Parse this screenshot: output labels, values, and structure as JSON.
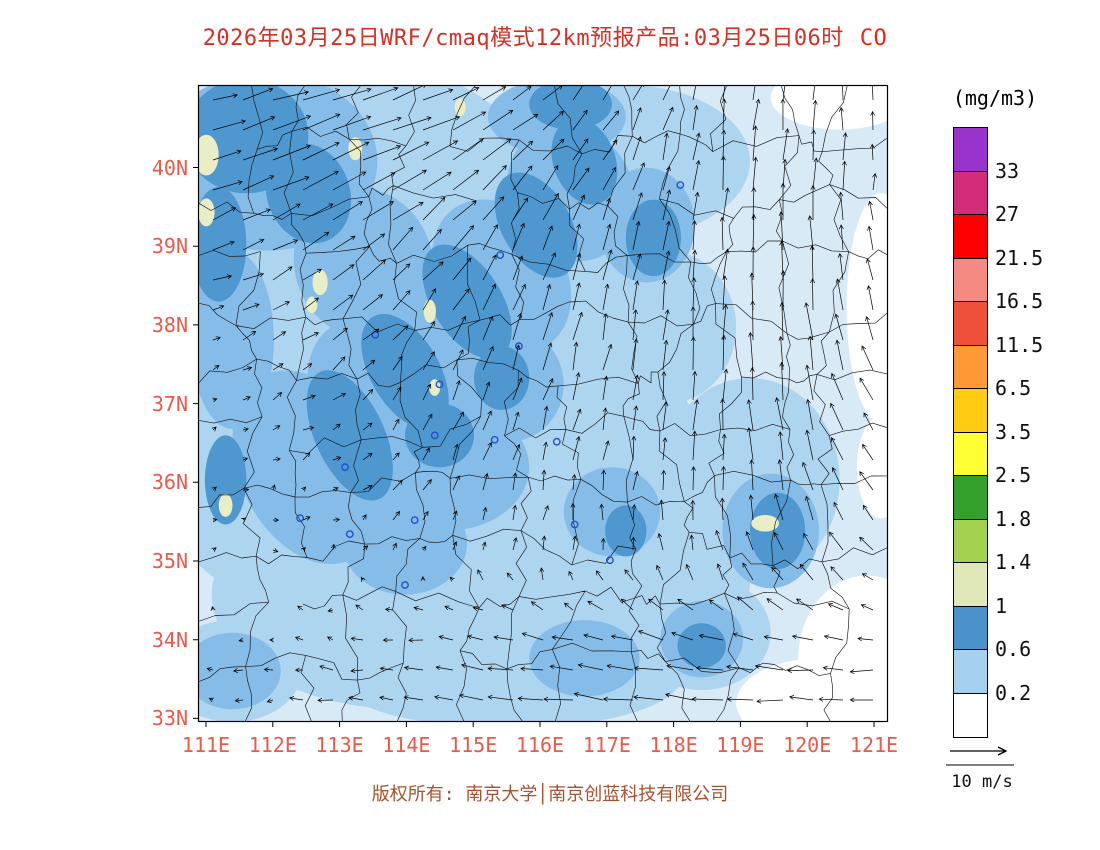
{
  "title": {
    "main": "2026年03月25日WRF/cmaq模式12km预报产品:03月25日06时",
    "species": "CO"
  },
  "axes": {
    "lat_labels": [
      "40N",
      "39N",
      "38N",
      "37N",
      "36N",
      "35N",
      "34N",
      "33N"
    ],
    "lon_labels": [
      "111E",
      "112E",
      "113E",
      "114E",
      "115E",
      "116E",
      "117E",
      "118E",
      "119E",
      "120E",
      "121E"
    ],
    "label_color": "#ee5848"
  },
  "colorbar": {
    "units": "(mg/m3)",
    "labels": [
      "33",
      "27",
      "21.5",
      "16.5",
      "11.5",
      "6.5",
      "3.5",
      "2.5",
      "1.8",
      "1.4",
      "1",
      "0.6",
      "0.2"
    ],
    "colors": [
      "#9933cc",
      "#d12d7a",
      "#ff0000",
      "#f58a80",
      "#ef5138",
      "#ff9933",
      "#ffcc11",
      "#ffff33",
      "#33a02c",
      "#a2d24e",
      "#e0e8b8",
      "#4a92cc",
      "#a5d1ee",
      "#ffffff"
    ]
  },
  "wind_legend": {
    "label": "10 m/s"
  },
  "footer": {
    "text": "版权所有: 南京大学│南京创蓝科技有限公司"
  },
  "chart_data": {
    "type": "heatmap",
    "title": "2026年03月25日WRF/cmaq模式12km预报产品:03月25日06时 CO",
    "variable": "CO",
    "units": "mg/m3",
    "lon_ticks": [
      "111E",
      "112E",
      "113E",
      "114E",
      "115E",
      "116E",
      "117E",
      "118E",
      "119E",
      "120E",
      "121E"
    ],
    "lat_ticks": [
      "40N",
      "39N",
      "38N",
      "37N",
      "36N",
      "35N",
      "34N",
      "33N"
    ],
    "lon_range": [
      111,
      121.3
    ],
    "lat_range": [
      33,
      41.1
    ],
    "contour_levels_mg_m3": [
      0.2,
      0.6,
      1,
      1.4,
      1.8,
      2.5,
      3.5,
      6.5,
      11.5,
      16.5,
      21.5,
      27,
      33
    ],
    "colors_low_to_high": [
      "#ffffff",
      "#a5d1ee",
      "#4a92cc",
      "#e0e8b8",
      "#a2d24e",
      "#33a02c",
      "#ffff33",
      "#ffcc11",
      "#ff9933",
      "#ef5138",
      "#f58a80",
      "#ff0000",
      "#d12d7a",
      "#9933cc"
    ],
    "wind_reference": {
      "speed": 10,
      "units": "m/s"
    },
    "map_render": {
      "palette": {
        "pale": "#d9eaf7",
        "light": "#aed5f0",
        "medium": "#85bde8",
        "dark": "#4f97cf",
        "white": "#ffffff",
        "khaki": "#e9eec6"
      },
      "blobs": [
        {
          "color": "light",
          "shapes": [
            [
              0.22,
              0.22,
              0.3,
              0.26,
              0
            ],
            [
              0.18,
              0.55,
              0.26,
              0.28,
              0
            ],
            [
              0.42,
              0.42,
              0.3,
              0.28,
              0
            ],
            [
              0.3,
              0.8,
              0.28,
              0.18,
              0
            ],
            [
              0.58,
              0.78,
              0.22,
              0.16,
              0
            ],
            [
              0.62,
              0.12,
              0.18,
              0.12,
              0
            ],
            [
              0.52,
              0.6,
              0.22,
              0.2,
              0
            ],
            [
              0.8,
              0.62,
              0.13,
              0.16,
              0
            ],
            [
              0.73,
              0.86,
              0.1,
              0.09,
              0
            ],
            [
              0.68,
              0.38,
              0.1,
              0.12,
              0
            ],
            [
              0.45,
              0.93,
              0.25,
              0.08,
              0
            ],
            [
              0.05,
              0.92,
              0.1,
              0.08,
              0
            ]
          ]
        },
        {
          "color": "medium",
          "shapes": [
            [
              0.1,
              0.12,
              0.16,
              0.14,
              0
            ],
            [
              0.24,
              0.28,
              0.1,
              0.12,
              -20
            ],
            [
              0.16,
              0.6,
              0.1,
              0.16,
              -25
            ],
            [
              0.26,
              0.5,
              0.09,
              0.14,
              -30
            ],
            [
              0.34,
              0.4,
              0.09,
              0.14,
              -30
            ],
            [
              0.44,
              0.3,
              0.09,
              0.13,
              -35
            ],
            [
              0.54,
              0.17,
              0.09,
              0.11,
              -30
            ],
            [
              0.52,
              0.05,
              0.1,
              0.06,
              0
            ],
            [
              0.65,
              0.22,
              0.07,
              0.09,
              0
            ],
            [
              0.36,
              0.6,
              0.12,
              0.1,
              0
            ],
            [
              0.3,
              0.72,
              0.09,
              0.08,
              0
            ],
            [
              0.45,
              0.47,
              0.08,
              0.09,
              0
            ],
            [
              0.83,
              0.7,
              0.07,
              0.09,
              0
            ],
            [
              0.73,
              0.87,
              0.06,
              0.06,
              0
            ],
            [
              0.6,
              0.67,
              0.07,
              0.07,
              0
            ],
            [
              0.05,
              0.4,
              0.06,
              0.14,
              0
            ],
            [
              0.56,
              0.9,
              0.08,
              0.06,
              0
            ],
            [
              0.05,
              0.92,
              0.07,
              0.06,
              0
            ]
          ]
        },
        {
          "color": "dark",
          "shapes": [
            [
              0.07,
              0.08,
              0.09,
              0.09,
              0
            ],
            [
              0.16,
              0.17,
              0.06,
              0.08,
              -20
            ],
            [
              0.03,
              0.25,
              0.04,
              0.09,
              0
            ],
            [
              0.22,
              0.55,
              0.05,
              0.11,
              -25
            ],
            [
              0.3,
              0.45,
              0.05,
              0.1,
              -30
            ],
            [
              0.39,
              0.34,
              0.05,
              0.1,
              -32
            ],
            [
              0.49,
              0.22,
              0.05,
              0.09,
              -30
            ],
            [
              0.56,
              0.12,
              0.045,
              0.07,
              -20
            ],
            [
              0.54,
              0.03,
              0.06,
              0.04,
              0
            ],
            [
              0.66,
              0.24,
              0.04,
              0.06,
              0
            ],
            [
              0.44,
              0.46,
              0.04,
              0.05,
              0
            ],
            [
              0.35,
              0.55,
              0.05,
              0.05,
              0
            ],
            [
              0.84,
              0.7,
              0.04,
              0.06,
              0
            ],
            [
              0.04,
              0.62,
              0.03,
              0.07,
              0
            ],
            [
              0.73,
              0.88,
              0.035,
              0.035,
              0
            ],
            [
              0.62,
              0.7,
              0.03,
              0.04,
              0
            ]
          ]
        },
        {
          "color": "white",
          "shapes": [
            [
              0.97,
              0.9,
              0.1,
              0.13,
              0
            ],
            [
              0.9,
              0.97,
              0.12,
              0.07,
              0
            ],
            [
              0.99,
              0.35,
              0.05,
              0.18,
              0
            ],
            [
              0.93,
              0.02,
              0.1,
              0.05,
              0
            ],
            [
              0.99,
              0.6,
              0.035,
              0.08,
              0
            ]
          ]
        },
        {
          "color": "khaki",
          "shapes": [
            [
              0.012,
              0.11,
              0.018,
              0.032,
              0
            ],
            [
              0.012,
              0.2,
              0.012,
              0.022,
              0
            ],
            [
              0.228,
              0.1,
              0.01,
              0.018,
              0
            ],
            [
              0.38,
              0.035,
              0.008,
              0.014,
              0
            ],
            [
              0.177,
              0.31,
              0.011,
              0.02,
              0
            ],
            [
              0.165,
              0.345,
              0.008,
              0.013,
              0
            ],
            [
              0.336,
              0.355,
              0.009,
              0.018,
              0
            ],
            [
              0.343,
              0.475,
              0.008,
              0.013,
              0
            ],
            [
              0.04,
              0.66,
              0.01,
              0.018,
              0
            ],
            [
              0.822,
              0.688,
              0.02,
              0.013,
              0
            ]
          ]
        }
      ],
      "markers": [
        [
          0.257,
          0.392
        ],
        [
          0.343,
          0.55
        ],
        [
          0.213,
          0.6
        ],
        [
          0.148,
          0.68
        ],
        [
          0.22,
          0.705
        ],
        [
          0.314,
          0.683
        ],
        [
          0.3,
          0.785
        ],
        [
          0.43,
          0.557
        ],
        [
          0.438,
          0.267
        ],
        [
          0.546,
          0.69
        ],
        [
          0.597,
          0.746
        ],
        [
          0.699,
          0.157
        ],
        [
          0.465,
          0.41
        ],
        [
          0.52,
          0.56
        ],
        [
          0.35,
          0.47
        ]
      ],
      "marker_color": "#1f4fd0",
      "boundaries": {
        "seed": 11,
        "cols": 13,
        "rows": 11,
        "omit": 0.1,
        "jitter": 36,
        "wiggle": 15,
        "color": "#15151a",
        "width": 0.65
      },
      "wind": {
        "step": 30,
        "scale": 4,
        "head": 4.5,
        "color": "#000000",
        "width": 0.7,
        "u": [
          {
            "amp": 7,
            "cx": 0.12,
            "cy": 0.1,
            "sx": 0.2,
            "sy": 0.16
          },
          {
            "amp": 3.5,
            "cx": 0.38,
            "cy": 0.06,
            "sx": 0.22,
            "sy": 0.1
          },
          {
            "amp": 2.5,
            "cx": 0.3,
            "cy": 0.4,
            "sx": 0.25,
            "sy": 0.25
          },
          {
            "amp": -5.5,
            "cx": 0.8,
            "cy": 0.97,
            "sx": 0.26,
            "sy": 0.12
          },
          {
            "amp": -4,
            "cx": 0.42,
            "cy": 0.95,
            "sx": 0.28,
            "sy": 0.1
          },
          {
            "amp": -3,
            "cx": 0.97,
            "cy": 0.6,
            "sx": 0.1,
            "sy": 0.18
          }
        ],
        "v": [
          {
            "amp": 8,
            "cx": 0.86,
            "cy": 0.38,
            "sx": 0.13,
            "sy": 0.34
          },
          {
            "amp": 5,
            "cx": 0.56,
            "cy": 0.42,
            "sx": 0.17,
            "sy": 0.28
          },
          {
            "amp": 3,
            "cx": 0.33,
            "cy": 0.3,
            "sx": 0.2,
            "sy": 0.22
          },
          {
            "amp": 2.5,
            "cx": 0.12,
            "cy": 0.12,
            "sx": 0.16,
            "sy": 0.14
          },
          {
            "amp": -2,
            "cx": 0.9,
            "cy": 0.92,
            "sx": 0.14,
            "sy": 0.1
          },
          {
            "amp": 2,
            "cx": 0.7,
            "cy": 0.05,
            "sx": 0.2,
            "sy": 0.1
          }
        ]
      }
    }
  }
}
